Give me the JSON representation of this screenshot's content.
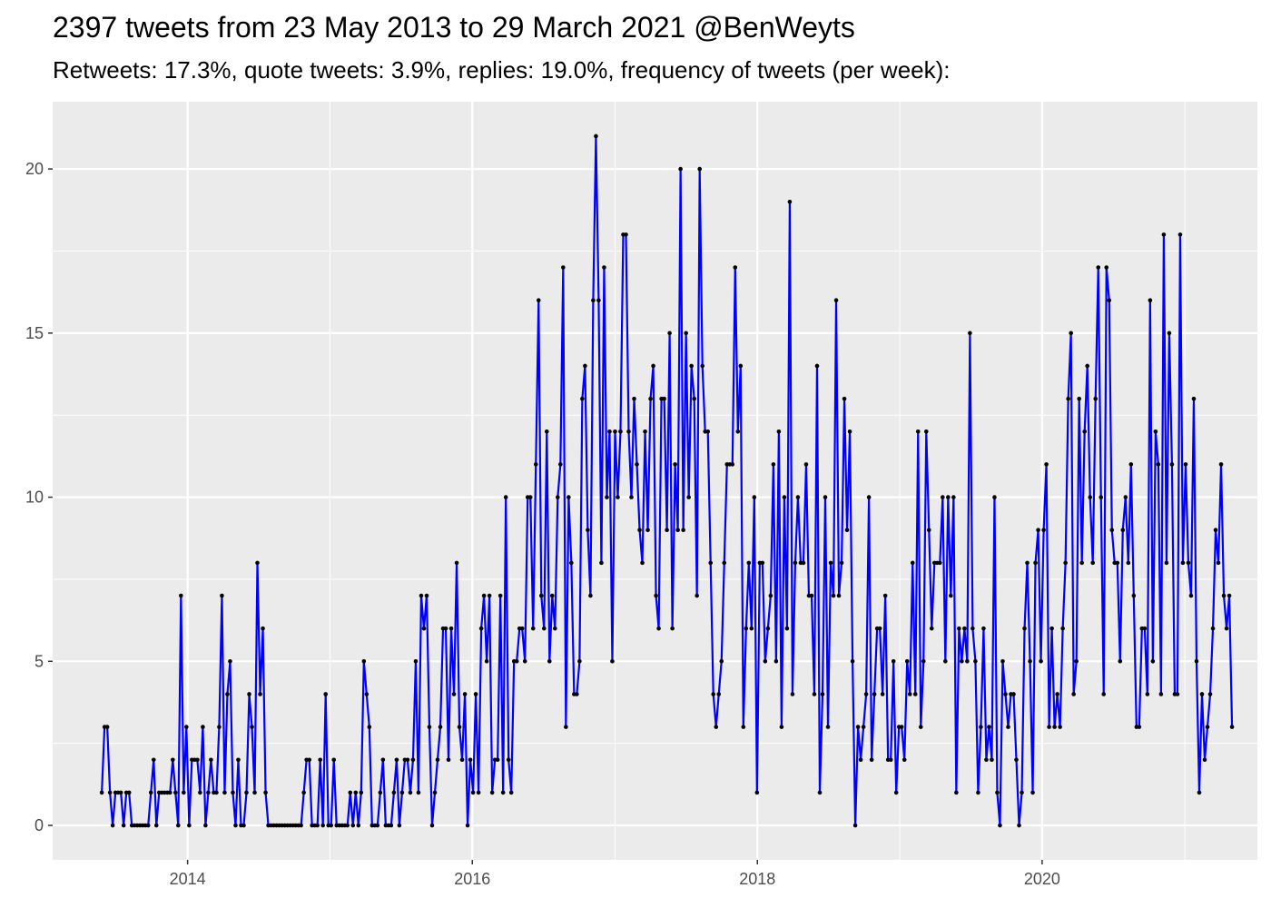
{
  "chart_data": {
    "type": "line",
    "title": "2397 tweets from 23 May 2013 to 29 March 2021 @BenWeyts",
    "subtitle": "Retweets: 17.3%, quote tweets: 3.9%, replies: 19.0%, frequency of tweets (per week):",
    "xlabel": "",
    "ylabel": "",
    "x_start": "2013-05-26",
    "x_unit": "week",
    "xlim": [
      "2013-01-20",
      "2021-07-06"
    ],
    "ylim": [
      -1.05,
      22.05
    ],
    "x_ticks": [
      "2014",
      "2016",
      "2018",
      "2020"
    ],
    "y_ticks": [
      0,
      5,
      10,
      15,
      20
    ],
    "grid": true,
    "legend": "none",
    "colors": {
      "line": "#0000ff",
      "point": "#000000",
      "panel": "#ebebeb",
      "grid": "#ffffff",
      "tick_text": "#4d4d4d"
    },
    "values": [
      1,
      3,
      3,
      1,
      0,
      1,
      1,
      1,
      0,
      1,
      1,
      0,
      0,
      0,
      0,
      0,
      0,
      0,
      1,
      2,
      0,
      1,
      1,
      1,
      1,
      1,
      2,
      1,
      0,
      7,
      1,
      3,
      0,
      2,
      2,
      2,
      1,
      3,
      0,
      1,
      2,
      1,
      1,
      3,
      7,
      1,
      4,
      5,
      1,
      0,
      2,
      0,
      0,
      1,
      4,
      3,
      1,
      8,
      4,
      6,
      1,
      0,
      0,
      0,
      0,
      0,
      0,
      0,
      0,
      0,
      0,
      0,
      0,
      0,
      1,
      2,
      2,
      0,
      0,
      0,
      2,
      0,
      4,
      0,
      0,
      2,
      0,
      0,
      0,
      0,
      0,
      1,
      0,
      1,
      0,
      1,
      5,
      4,
      3,
      0,
      0,
      0,
      1,
      2,
      0,
      0,
      0,
      1,
      2,
      0,
      1,
      2,
      2,
      1,
      2,
      5,
      1,
      7,
      6,
      7,
      3,
      0,
      1,
      2,
      3,
      6,
      6,
      2,
      6,
      4,
      8,
      3,
      2,
      4,
      0,
      2,
      1,
      4,
      1,
      6,
      7,
      5,
      7,
      1,
      2,
      2,
      7,
      1,
      10,
      2,
      1,
      5,
      5,
      6,
      6,
      5,
      10,
      10,
      6,
      11,
      16,
      7,
      6,
      12,
      5,
      7,
      6,
      10,
      11,
      17,
      3,
      10,
      8,
      4,
      4,
      5,
      13,
      14,
      9,
      7,
      16,
      21,
      16,
      8,
      17,
      10,
      12,
      5,
      12,
      10,
      12,
      18,
      18,
      12,
      10,
      13,
      11,
      9,
      8,
      12,
      9,
      13,
      14,
      7,
      6,
      13,
      13,
      9,
      15,
      6,
      11,
      9,
      20,
      9,
      15,
      10,
      14,
      13,
      7,
      20,
      14,
      12,
      12,
      8,
      4,
      3,
      4,
      5,
      8,
      11,
      11,
      11,
      17,
      12,
      14,
      3,
      6,
      8,
      6,
      10,
      1,
      8,
      8,
      5,
      6,
      7,
      11,
      5,
      12,
      3,
      10,
      6,
      19,
      4,
      8,
      10,
      8,
      8,
      11,
      7,
      7,
      4,
      14,
      1,
      4,
      10,
      3,
      8,
      7,
      16,
      7,
      8,
      13,
      9,
      12,
      5,
      0,
      3,
      2,
      3,
      4,
      10,
      2,
      4,
      6,
      6,
      4,
      7,
      2,
      2,
      5,
      1,
      3,
      3,
      2,
      5,
      4,
      8,
      4,
      12,
      3,
      5,
      12,
      9,
      6,
      8,
      8,
      8,
      10,
      5,
      10,
      7,
      10,
      1,
      6,
      5,
      6,
      5,
      15,
      6,
      5,
      1,
      3,
      6,
      2,
      3,
      2,
      10,
      1,
      0,
      5,
      4,
      3,
      4,
      4,
      2,
      0,
      1,
      6,
      8,
      5,
      1,
      8,
      9,
      5,
      9,
      11,
      3,
      6,
      3,
      4,
      3,
      6,
      8,
      13,
      15,
      4,
      5,
      13,
      8,
      12,
      14,
      10,
      8,
      13,
      17,
      10,
      4,
      17,
      16,
      9,
      8,
      8,
      5,
      9,
      10,
      8,
      11,
      7,
      3,
      3,
      6,
      6,
      4,
      16,
      5,
      12,
      11,
      4,
      18,
      8,
      15,
      11,
      4,
      4,
      18,
      8,
      11,
      8,
      7,
      13,
      5,
      1,
      4,
      2,
      3,
      4,
      6,
      9,
      8,
      11,
      7,
      6,
      7,
      3
    ]
  }
}
